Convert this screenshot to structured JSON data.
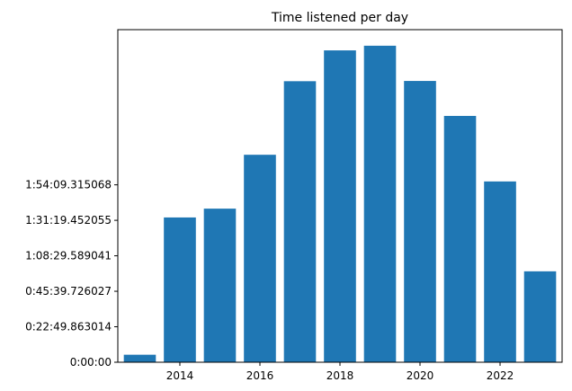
{
  "chart_data": {
    "type": "bar",
    "title": "Time listened per day",
    "xlabel": "",
    "ylabel": "",
    "categories": [
      "2013",
      "2014",
      "2015",
      "2016",
      "2017",
      "2018",
      "2019",
      "2020",
      "2021",
      "2022",
      "2023"
    ],
    "x": [
      2013,
      2014,
      2015,
      2016,
      2017,
      2018,
      2019,
      2020,
      2021,
      2022,
      2023
    ],
    "values": [
      290,
      5590,
      5930,
      8010,
      10850,
      12040,
      12220,
      10860,
      9510,
      6980,
      3510
    ],
    "value_unit": "seconds",
    "xlim": [
      2012.45,
      2023.55
    ],
    "ylim": [
      0,
      12840
    ],
    "x_ticks": [
      2014,
      2016,
      2018,
      2020,
      2022
    ],
    "x_tick_labels": [
      "2014",
      "2016",
      "2018",
      "2020",
      "2022"
    ],
    "y_ticks": [
      0,
      1369.863014,
      2739.726027,
      4109.589041,
      5479.452055,
      6849.315068
    ],
    "y_tick_labels": [
      "0:00:00",
      "0:22:49.863014",
      "0:45:39.726027",
      "1:08:29.589041",
      "1:31:19.452055",
      "1:54:09.315068"
    ],
    "bar_color": "#1f77b4",
    "grid": false,
    "legend": "none"
  }
}
